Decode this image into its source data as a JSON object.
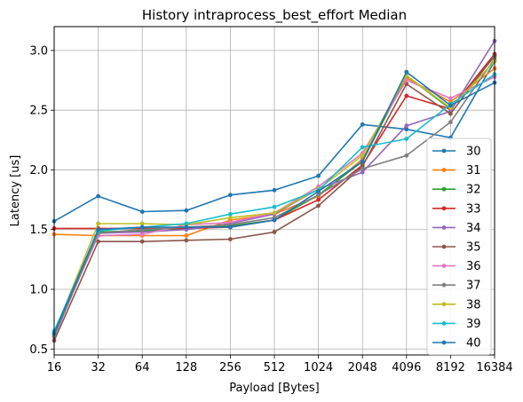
{
  "chart_data": {
    "type": "line",
    "title": "History intraprocess_best_effort Median",
    "xlabel": "Payload [Bytes]",
    "ylabel": "Latency [us]",
    "categories": [
      "16",
      "32",
      "64",
      "128",
      "256",
      "512",
      "1024",
      "2048",
      "4096",
      "8192",
      "16384"
    ],
    "x_scale": "log2",
    "ylim": [
      0.45,
      3.2
    ],
    "y_ticks": [
      0.5,
      1.0,
      1.5,
      2.0,
      2.5,
      3.0
    ],
    "y_tick_labels": [
      "0.5",
      "1.0",
      "1.5",
      "2.0",
      "2.5",
      "3.0"
    ],
    "grid": true,
    "legend_position": "lower-right",
    "series": [
      {
        "name": "30",
        "color": "#1f77b4",
        "values": [
          1.57,
          1.78,
          1.65,
          1.66,
          1.79,
          1.83,
          1.95,
          2.38,
          2.34,
          2.27,
          2.91
        ]
      },
      {
        "name": "31",
        "color": "#ff7f0e",
        "values": [
          1.46,
          1.45,
          1.45,
          1.45,
          1.58,
          1.63,
          1.78,
          2.09,
          2.77,
          2.57,
          2.85
        ]
      },
      {
        "name": "32",
        "color": "#2ca02c",
        "values": [
          0.62,
          1.48,
          1.49,
          1.51,
          1.53,
          1.58,
          1.79,
          2.07,
          2.79,
          2.51,
          2.95
        ]
      },
      {
        "name": "33",
        "color": "#d62728",
        "values": [
          1.51,
          1.51,
          1.51,
          1.51,
          1.52,
          1.58,
          1.75,
          2.04,
          2.62,
          2.51,
          2.97
        ]
      },
      {
        "name": "34",
        "color": "#9467bd",
        "values": [
          0.6,
          1.47,
          1.48,
          1.5,
          1.55,
          1.63,
          1.84,
          1.98,
          2.37,
          2.49,
          3.08
        ]
      },
      {
        "name": "35",
        "color": "#8c564b",
        "values": [
          0.57,
          1.4,
          1.4,
          1.41,
          1.42,
          1.48,
          1.7,
          2.03,
          2.72,
          2.47,
          2.96
        ]
      },
      {
        "name": "36",
        "color": "#e377c2",
        "values": [
          0.63,
          1.45,
          1.46,
          1.54,
          1.56,
          1.64,
          1.86,
          2.14,
          2.75,
          2.6,
          2.78
        ]
      },
      {
        "name": "37",
        "color": "#7f7f7f",
        "values": [
          0.61,
          1.47,
          1.5,
          1.52,
          1.54,
          1.6,
          1.79,
          2.01,
          2.12,
          2.4,
          2.93
        ]
      },
      {
        "name": "38",
        "color": "#bcbd22",
        "values": [
          0.63,
          1.55,
          1.55,
          1.54,
          1.6,
          1.64,
          1.84,
          2.12,
          2.79,
          2.52,
          2.91
        ]
      },
      {
        "name": "39",
        "color": "#17becf",
        "values": [
          0.65,
          1.49,
          1.52,
          1.55,
          1.63,
          1.69,
          1.83,
          2.19,
          2.26,
          2.55,
          2.8
        ]
      },
      {
        "name": "40",
        "color": "#1f77b4",
        "values": [
          0.63,
          1.5,
          1.52,
          1.52,
          1.52,
          1.58,
          1.82,
          2.07,
          2.82,
          2.54,
          2.73
        ]
      }
    ]
  }
}
